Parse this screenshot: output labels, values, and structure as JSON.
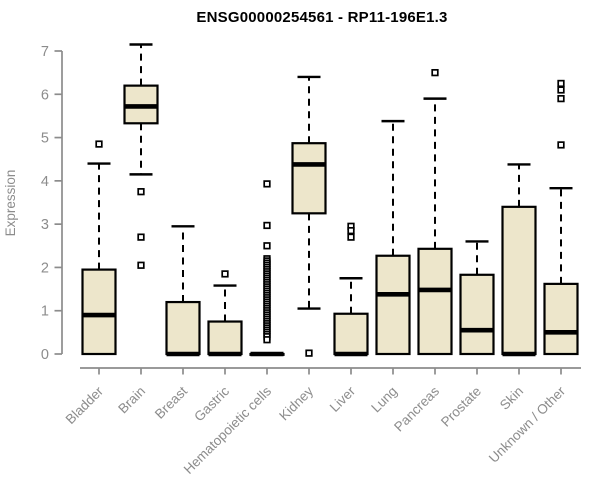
{
  "chart_data": {
    "type": "boxplot",
    "title": "ENSG00000254561 - RP11-196E1.3",
    "xlabel": "",
    "ylabel": "Expression",
    "ylim": [
      0,
      7
    ],
    "yticks": [
      0,
      1,
      2,
      3,
      4,
      5,
      6,
      7
    ],
    "grid": false,
    "legend": "none",
    "box_fill_color": "#EDE6CB",
    "box_border_color": "#000000",
    "axis_color": "#8C8C8C",
    "categories": [
      "Bladder",
      "Brain",
      "Breast",
      "Gastric",
      "Hematopoietic cells",
      "Kidney",
      "Liver",
      "Lung",
      "Pancreas",
      "Prostate",
      "Skin",
      "Unknown / Other"
    ],
    "boxes": [
      {
        "category": "Bladder",
        "whisker_low": 0,
        "q1": 0,
        "median": 0.9,
        "q3": 1.95,
        "whisker_high": 4.4,
        "outliers": [
          4.85
        ]
      },
      {
        "category": "Brain",
        "whisker_low": 4.15,
        "q1": 5.33,
        "median": 5.72,
        "q3": 6.2,
        "whisker_high": 7.15,
        "outliers": [
          3.75,
          2.7,
          2.05
        ]
      },
      {
        "category": "Breast",
        "whisker_low": 0,
        "q1": 0,
        "median": 0,
        "q3": 1.2,
        "whisker_high": 2.95,
        "outliers": []
      },
      {
        "category": "Gastric",
        "whisker_low": 0,
        "q1": 0,
        "median": 0,
        "q3": 0.75,
        "whisker_high": 1.58,
        "outliers": [
          1.85
        ]
      },
      {
        "category": "Hematopoietic cells",
        "whisker_low": 0,
        "q1": 0,
        "median": 0,
        "q3": 0,
        "whisker_high": 0,
        "outliers": [
          3.93,
          2.97,
          2.5,
          2.2,
          2.15,
          2.1,
          2.05,
          2.0,
          1.95,
          1.9,
          1.85,
          1.8,
          1.75,
          1.7,
          1.65,
          1.6,
          1.55,
          1.5,
          1.45,
          1.4,
          1.35,
          1.3,
          1.25,
          1.2,
          1.15,
          1.1,
          1.05,
          1.0,
          0.95,
          0.9,
          0.85,
          0.8,
          0.75,
          0.7,
          0.65,
          0.6,
          0.55,
          0.5,
          0.45,
          0.4,
          0.33
        ]
      },
      {
        "category": "Kidney",
        "whisker_low": 1.05,
        "q1": 3.25,
        "median": 4.38,
        "q3": 4.87,
        "whisker_high": 6.4,
        "outliers": [
          0.02
        ]
      },
      {
        "category": "Liver",
        "whisker_low": 0,
        "q1": 0,
        "median": 0,
        "q3": 0.93,
        "whisker_high": 1.75,
        "outliers": [
          2.95,
          2.85,
          2.7
        ]
      },
      {
        "category": "Lung",
        "whisker_low": 0,
        "q1": 0,
        "median": 1.38,
        "q3": 2.27,
        "whisker_high": 5.38,
        "outliers": []
      },
      {
        "category": "Pancreas",
        "whisker_low": 0,
        "q1": 0,
        "median": 1.48,
        "q3": 2.43,
        "whisker_high": 5.9,
        "outliers": [
          6.5
        ]
      },
      {
        "category": "Prostate",
        "whisker_low": 0,
        "q1": 0,
        "median": 0.55,
        "q3": 1.83,
        "whisker_high": 2.6,
        "outliers": []
      },
      {
        "category": "Skin",
        "whisker_low": 0,
        "q1": 0,
        "median": 0,
        "q3": 3.4,
        "whisker_high": 4.38,
        "outliers": []
      },
      {
        "category": "Unknown / Other",
        "whisker_low": 0,
        "q1": 0,
        "median": 0.5,
        "q3": 1.62,
        "whisker_high": 3.83,
        "outliers": [
          4.83,
          5.9,
          6.1,
          6.25
        ]
      }
    ]
  }
}
